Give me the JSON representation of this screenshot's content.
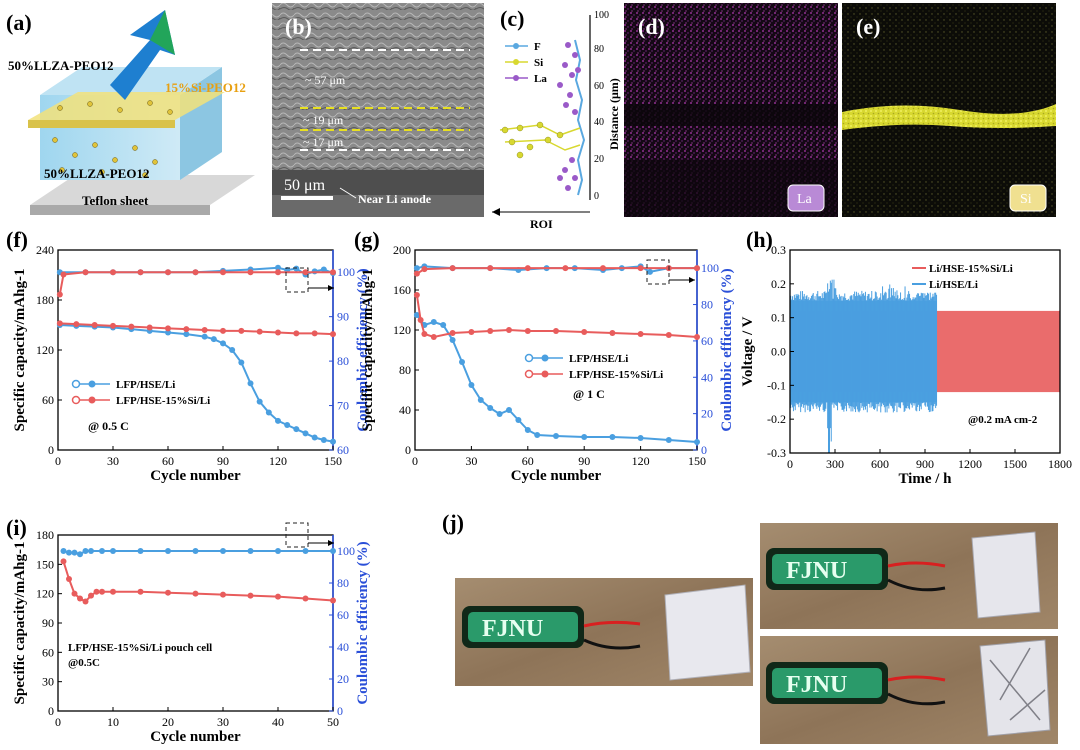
{
  "panels": {
    "a": {
      "label": "(a)",
      "layer_top": "50%LLZA-PEO12",
      "layer_mid": "15%Si-PEO12",
      "layer_bottom": "50%LLZA-PEO12",
      "substrate": "Teflon sheet"
    },
    "b": {
      "label": "(b)",
      "thick1": "~ 57 μm",
      "thick2": "~ 19 μm",
      "thick3": "~ 17 μm",
      "scale": "50 μm",
      "note": "Near Li anode"
    },
    "c": {
      "label": "(c)",
      "legend": [
        "F",
        "Si",
        "La"
      ],
      "ylabel": "Distance (μm)",
      "roi": "ROI",
      "ticks": [
        "0",
        "20",
        "40",
        "60",
        "80",
        "100"
      ]
    },
    "d": {
      "label": "(d)",
      "element": "La"
    },
    "e": {
      "label": "(e)",
      "element": "Si"
    },
    "j": {
      "label": "(j)",
      "led_text": "FJNU"
    }
  },
  "colors": {
    "blue": "#4a9fe0",
    "red": "#e85c5c",
    "axis_blue": "#2a4fd8",
    "dash_white": "#ffffff",
    "dash_yellow": "#e8e020"
  },
  "chart_data": [
    {
      "id": "f",
      "label": "(f)",
      "type": "scatter",
      "title": "",
      "xlabel": "Cycle number",
      "ylabel": "Specific capacity/mAhg-1",
      "ylabel2": "Coulombic efficiency (%)",
      "xlim": [
        0,
        150
      ],
      "ylim": [
        0,
        240
      ],
      "y2lim": [
        60,
        105
      ],
      "xticks": [
        "0",
        "30",
        "60",
        "90",
        "120",
        "150"
      ],
      "yticks": [
        "0",
        "60",
        "120",
        "180",
        "240"
      ],
      "y2ticks": [
        "60",
        "70",
        "80",
        "90",
        "100"
      ],
      "annotation": "@ 0.5 C",
      "series": [
        {
          "name": "LFP/HSE/Li",
          "color": "blue",
          "axis": "left",
          "x": [
            1,
            10,
            20,
            30,
            40,
            50,
            60,
            70,
            80,
            85,
            90,
            95,
            100,
            105,
            110,
            115,
            120,
            125,
            130,
            135,
            140,
            145,
            150
          ],
          "values": [
            150,
            149,
            148,
            147,
            145,
            143,
            141,
            139,
            136,
            133,
            128,
            120,
            105,
            80,
            58,
            45,
            35,
            30,
            25,
            20,
            15,
            12,
            10
          ]
        },
        {
          "name": "LFP/HSE-15%Si/Li",
          "color": "red",
          "axis": "left",
          "x": [
            1,
            10,
            20,
            30,
            40,
            50,
            60,
            70,
            80,
            90,
            100,
            110,
            120,
            130,
            140,
            150
          ],
          "values": [
            152,
            151,
            150,
            149,
            148,
            147,
            146,
            145,
            144,
            143,
            143,
            142,
            141,
            140,
            140,
            139
          ]
        },
        {
          "name": "CE LFP/HSE/Li",
          "color": "blue",
          "axis": "right",
          "x": [
            1,
            15,
            30,
            45,
            60,
            75,
            90,
            105,
            120,
            125,
            130,
            135,
            140,
            145,
            150
          ],
          "values": [
            100,
            100,
            100,
            100,
            100,
            100,
            100.3,
            100.6,
            101,
            100.5,
            100.8,
            99.5,
            100.2,
            100.6,
            99.8
          ]
        },
        {
          "name": "CE LFP/HSE-15%Si/Li",
          "color": "red",
          "axis": "right",
          "x": [
            1,
            3,
            15,
            30,
            45,
            60,
            75,
            90,
            105,
            120,
            135,
            150
          ],
          "values": [
            95,
            99.5,
            100,
            100,
            100,
            100,
            100,
            100,
            100,
            100,
            100,
            100
          ]
        }
      ]
    },
    {
      "id": "g",
      "label": "(g)",
      "type": "scatter",
      "title": "",
      "xlabel": "Cycle number",
      "ylabel": "Specific capacity/mAhg-1",
      "ylabel2": "Coulombic efficiency (%)",
      "xlim": [
        0,
        150
      ],
      "ylim": [
        0,
        200
      ],
      "y2lim": [
        0,
        110
      ],
      "xticks": [
        "0",
        "30",
        "60",
        "90",
        "120",
        "150"
      ],
      "yticks": [
        "0",
        "40",
        "80",
        "120",
        "160",
        "200"
      ],
      "y2ticks": [
        "0",
        "20",
        "40",
        "60",
        "80",
        "100"
      ],
      "annotation": "@ 1 C",
      "series": [
        {
          "name": "LFP/HSE/Li",
          "color": "blue",
          "axis": "left",
          "x": [
            1,
            5,
            10,
            15,
            20,
            25,
            30,
            35,
            40,
            45,
            50,
            55,
            60,
            65,
            75,
            90,
            105,
            120,
            135,
            150
          ],
          "values": [
            135,
            125,
            128,
            125,
            110,
            88,
            65,
            50,
            42,
            36,
            40,
            30,
            20,
            15,
            14,
            13,
            13,
            12,
            10,
            8
          ]
        },
        {
          "name": "LFP/HSE-15%Si/Li",
          "color": "red",
          "axis": "left",
          "x": [
            1,
            3,
            5,
            10,
            20,
            30,
            40,
            50,
            60,
            75,
            90,
            105,
            120,
            135,
            150
          ],
          "values": [
            155,
            130,
            116,
            113,
            117,
            118,
            119,
            120,
            119,
            119,
            118,
            117,
            116,
            115,
            113
          ]
        },
        {
          "name": "CE LFP/HSE/Li",
          "color": "blue",
          "axis": "right",
          "x": [
            1,
            5,
            20,
            40,
            55,
            70,
            85,
            100,
            110,
            120,
            125,
            135,
            150
          ],
          "values": [
            100,
            101,
            100,
            100,
            99,
            100,
            100,
            99,
            100,
            101,
            98,
            100,
            100
          ]
        },
        {
          "name": "CE LFP/HSE-15%Si/Li",
          "color": "red",
          "axis": "right",
          "x": [
            1,
            5,
            20,
            40,
            60,
            80,
            100,
            120,
            135,
            150
          ],
          "values": [
            97,
            99.5,
            100,
            100,
            100,
            100,
            100,
            100,
            100,
            100
          ]
        }
      ]
    },
    {
      "id": "h",
      "label": "(h)",
      "type": "line",
      "xlabel": "Time / h",
      "ylabel": "Voltage / V",
      "xlim": [
        0,
        1800
      ],
      "ylim": [
        -0.3,
        0.3
      ],
      "xticks": [
        "0",
        "300",
        "600",
        "900",
        "1200",
        "1500",
        "1800"
      ],
      "yticks": [
        "-0.3",
        "-0.2",
        "-0.1",
        "0.0",
        "0.1",
        "0.2",
        "0.3"
      ],
      "annotation": "@0.2 mA cm-2",
      "series": [
        {
          "name": "Li/HSE-15%Si/Li",
          "color": "red",
          "t_end": 1800,
          "amplitude": 0.12
        },
        {
          "name": "Li/HSE/Li",
          "color": "blue",
          "t_end": 980,
          "amplitude": 0.15,
          "max_spike": 0.225,
          "min_spike": -0.3
        }
      ]
    },
    {
      "id": "i",
      "label": "(i)",
      "type": "scatter",
      "xlabel": "Cycle number",
      "ylabel": "Specific capacity/mAhg-1",
      "ylabel2": "Coulombic efficiency (%)",
      "xlim": [
        0,
        50
      ],
      "ylim": [
        0,
        180
      ],
      "y2lim": [
        0,
        110
      ],
      "xticks": [
        "0",
        "10",
        "20",
        "30",
        "40",
        "50"
      ],
      "yticks": [
        "0",
        "30",
        "60",
        "90",
        "120",
        "150",
        "180"
      ],
      "y2ticks": [
        "0",
        "20",
        "40",
        "60",
        "80",
        "100"
      ],
      "annotation": "LFP/HSE-15%Si/Li pouch cell",
      "annotation2": "@0.5C",
      "series": [
        {
          "name": "Capacity",
          "color": "red",
          "axis": "left",
          "x": [
            1,
            2,
            3,
            4,
            5,
            6,
            7,
            8,
            10,
            15,
            20,
            25,
            30,
            35,
            40,
            45,
            50
          ],
          "values": [
            153,
            135,
            120,
            115,
            112,
            118,
            122,
            122,
            122,
            122,
            121,
            120,
            119,
            118,
            117,
            115,
            113
          ]
        },
        {
          "name": "Coulombic efficiency",
          "color": "blue",
          "axis": "right",
          "x": [
            1,
            2,
            3,
            4,
            5,
            6,
            8,
            10,
            15,
            20,
            25,
            30,
            35,
            40,
            45,
            50
          ],
          "values": [
            100,
            99,
            99,
            98,
            100,
            100,
            100,
            100,
            100,
            100,
            100,
            100,
            100,
            100,
            100,
            100
          ]
        }
      ]
    }
  ]
}
